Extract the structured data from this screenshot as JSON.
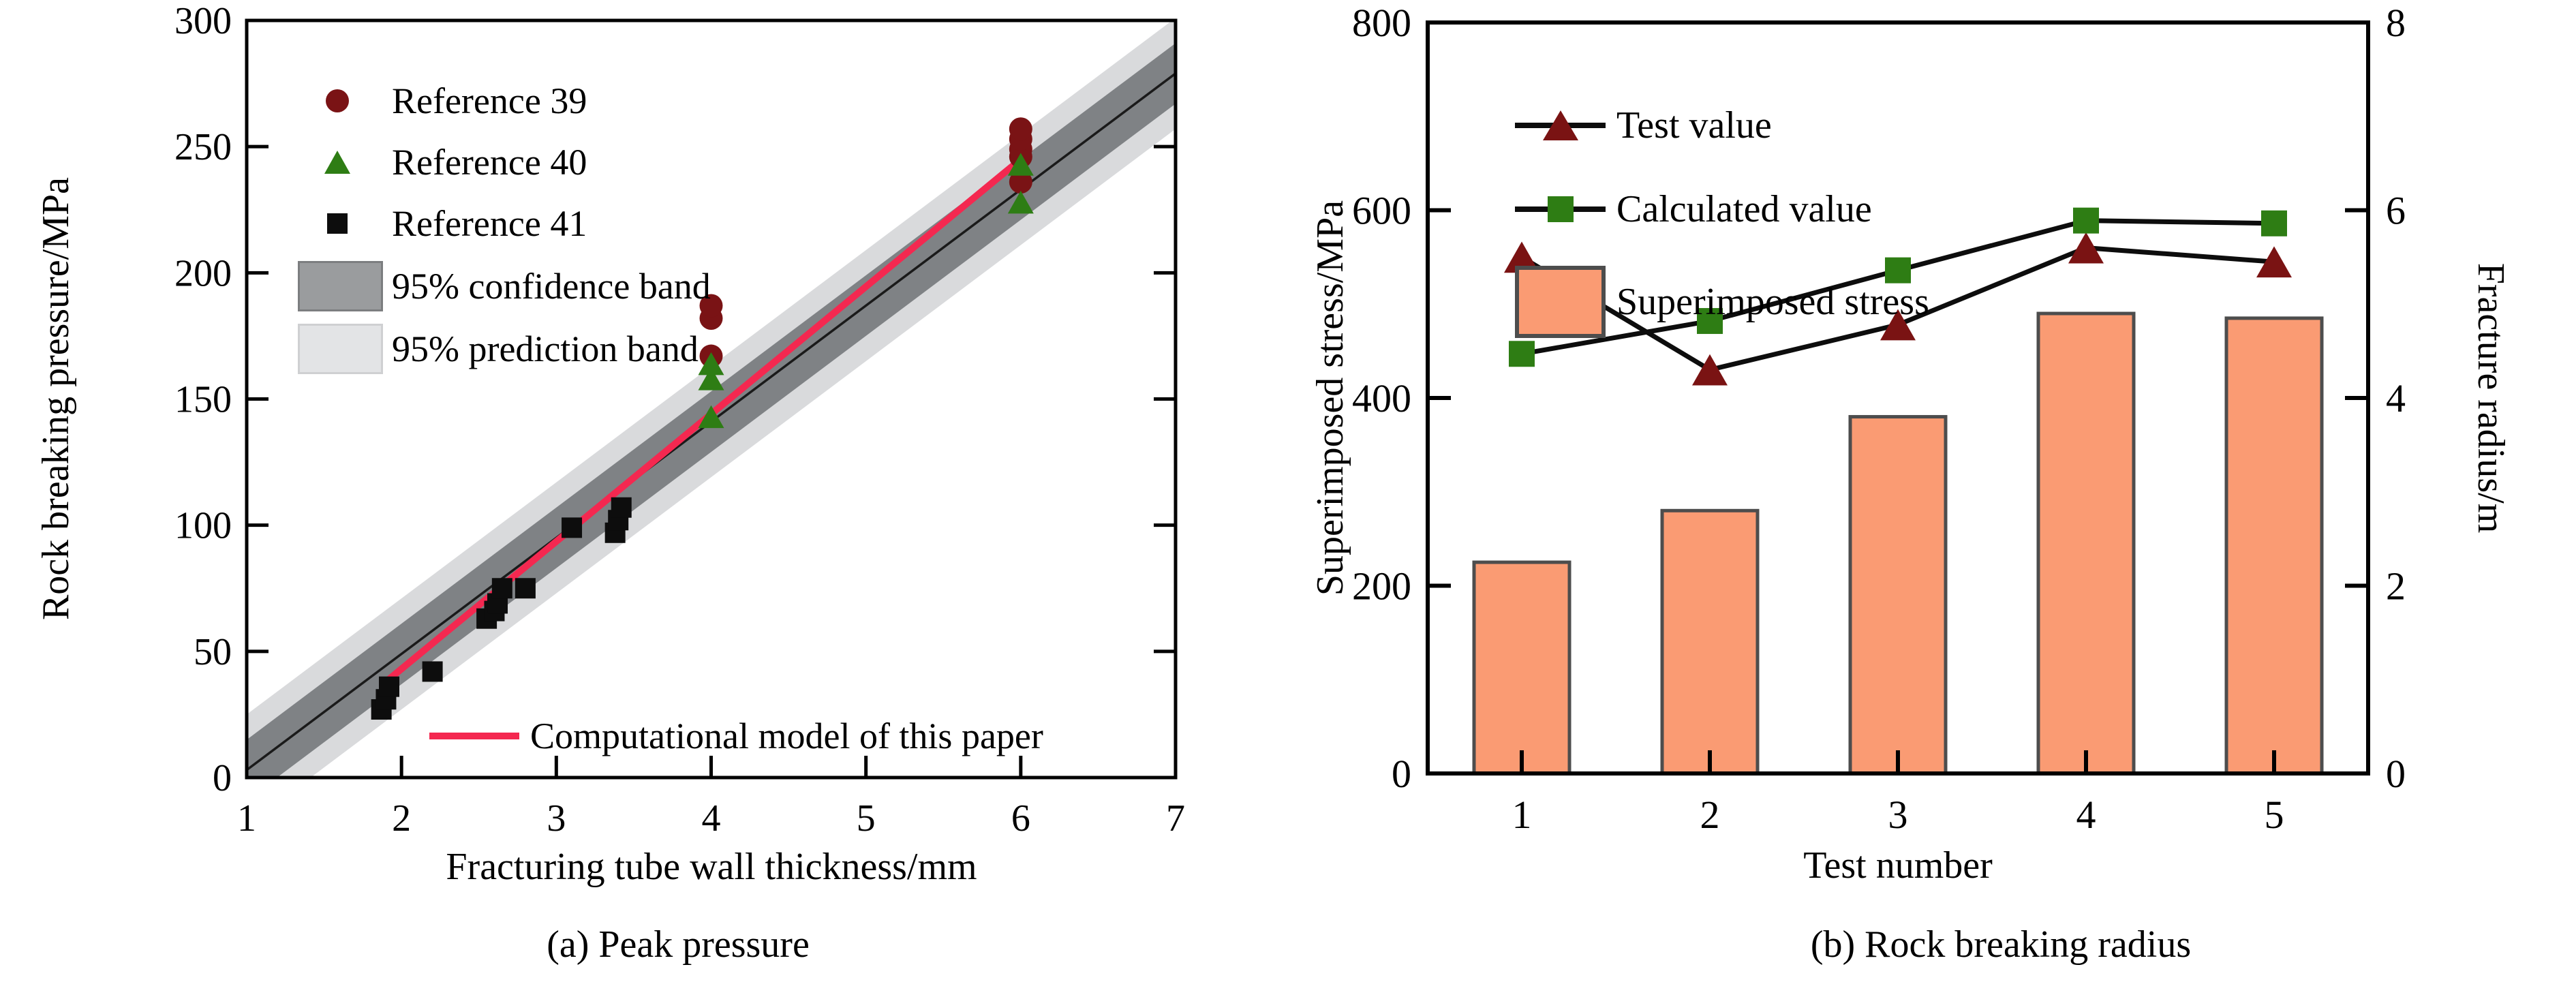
{
  "figure": {
    "background": "#ffffff",
    "text_color": "#000000"
  },
  "chart_data": [
    {
      "type": "scatter",
      "caption": "(a) Peak pressure",
      "xlabel": "Fracturing tube wall thickness/mm",
      "ylabel": "Rock breaking pressure/MPa",
      "xlim": [
        1,
        7
      ],
      "ylim": [
        0,
        300
      ],
      "xticks": [
        "1",
        "2",
        "3",
        "4",
        "5",
        "6",
        "7"
      ],
      "yticks": [
        "0",
        "50",
        "100",
        "150",
        "200",
        "250",
        "300"
      ],
      "grid": false,
      "legend_position": "upper-left-inside",
      "series": [
        {
          "name": "Reference 39",
          "marker": "circle",
          "color": "#7a1315",
          "points": [
            [
              4,
              167
            ],
            [
              4,
              182
            ],
            [
              4,
              187
            ],
            [
              6,
              236
            ],
            [
              6,
              246
            ],
            [
              6,
              249
            ],
            [
              6,
              253
            ],
            [
              6,
              257
            ]
          ]
        },
        {
          "name": "Reference 40",
          "marker": "triangle",
          "color": "#2e7d14",
          "points": [
            [
              4,
              143
            ],
            [
              4,
              158
            ],
            [
              4,
              164
            ],
            [
              6,
              228
            ],
            [
              6,
              243
            ]
          ]
        },
        {
          "name": "Reference 41",
          "marker": "square",
          "color": "#0d0d0d",
          "points": [
            [
              1.87,
              27
            ],
            [
              1.9,
              31
            ],
            [
              1.92,
              36
            ],
            [
              2.2,
              42
            ],
            [
              2.55,
              63
            ],
            [
              2.6,
              66
            ],
            [
              2.62,
              69
            ],
            [
              2.65,
              75
            ],
            [
              2.8,
              75
            ],
            [
              3.1,
              99
            ],
            [
              3.38,
              97
            ],
            [
              3.4,
              102
            ],
            [
              3.42,
              107
            ]
          ]
        }
      ],
      "fit_line": {
        "x1": 1,
        "y1": 3,
        "x2": 7,
        "y2": 279,
        "color": "#1a1a1a"
      },
      "confidence_band": {
        "label": "95% confidence band",
        "half_width": 12,
        "color": "#7f8285",
        "legend_color": "#9a9c9e",
        "legend_border": "#7c7e80"
      },
      "prediction_band": {
        "label": "95% prediction band",
        "half_width": 22,
        "color": "#d9dadc",
        "legend_color": "#e3e4e6",
        "legend_border": "#cfd0d2"
      },
      "model_line": {
        "label": "Computational model of this paper",
        "color": "#f42850",
        "x1": 1.88,
        "y1": 37,
        "x2": 6,
        "y2": 245
      }
    },
    {
      "type": "bar+line",
      "caption": "(b) Rock breaking radius",
      "xlabel": "Test number",
      "ylabel_left": "Superimposed stress/MPa",
      "ylabel_right": "Fracture radius/m",
      "categories": [
        "1",
        "2",
        "3",
        "4",
        "5"
      ],
      "ylim_left": [
        0,
        800
      ],
      "yticks_left": [
        "0",
        "200",
        "400",
        "600",
        "800"
      ],
      "ylim_right": [
        0,
        8
      ],
      "yticks_right": [
        "0",
        "2",
        "4",
        "6",
        "8"
      ],
      "grid": false,
      "legend_position": "upper-left-inside",
      "bars": {
        "name": "Superimposed stress",
        "axis": "left",
        "values": [
          225,
          280,
          380,
          490,
          485
        ],
        "fill": "#fa9b73",
        "border": "#4d4d4d"
      },
      "series": [
        {
          "name": "Test value",
          "axis": "right",
          "marker": "triangle",
          "color": "#7a1313",
          "line_color": "#0d0d0d",
          "values": [
            5.5,
            4.3,
            4.78,
            5.6,
            5.45
          ]
        },
        {
          "name": "Calculated value",
          "axis": "right",
          "marker": "square",
          "color": "#2e7d14",
          "line_color": "#0d0d0d",
          "values": [
            4.47,
            4.82,
            5.36,
            5.89,
            5.86
          ]
        }
      ]
    }
  ]
}
